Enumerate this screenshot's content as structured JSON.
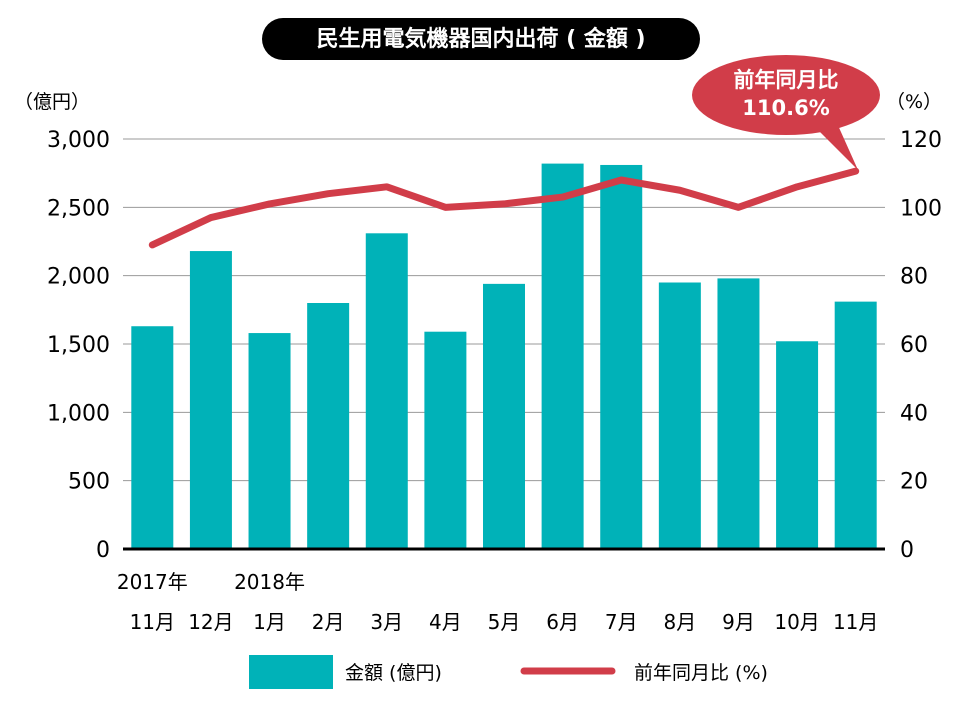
{
  "chart_data": {
    "type": "bar",
    "title": "民生用電気機器国内出荷 ( 金額 )",
    "left_axis_unit": "（億円）",
    "right_axis_unit": "（%）",
    "left_ticks": [
      "3,000",
      "2,500",
      "2,000",
      "1,500",
      "1,000",
      "500",
      "0"
    ],
    "right_ticks": [
      "120",
      "100",
      "80",
      "60",
      "40",
      "20",
      "0"
    ],
    "ylim_left": [
      0,
      3000
    ],
    "ylim_right": [
      0,
      120
    ],
    "year_labels": [
      {
        "text": "2017年",
        "index": 0
      },
      {
        "text": "2018年",
        "index": 2
      }
    ],
    "categories": [
      "11月",
      "12月",
      "1月",
      "2月",
      "3月",
      "4月",
      "5月",
      "6月",
      "7月",
      "8月",
      "9月",
      "10月",
      "11月"
    ],
    "series": [
      {
        "name": "金額 (億円)",
        "type": "bar",
        "axis": "left",
        "color": "#00b2b8",
        "values": [
          1630,
          2180,
          1580,
          1800,
          2310,
          1590,
          1940,
          2820,
          2810,
          1950,
          1980,
          1520,
          1810
        ]
      },
      {
        "name": "前年同月比 (%)",
        "type": "line",
        "axis": "right",
        "color": "#d13d49",
        "values": [
          89,
          97,
          101,
          104,
          106,
          100,
          101,
          103,
          108,
          105,
          100,
          106,
          110.6
        ]
      }
    ],
    "callout": {
      "line1": "前年同月比",
      "line2": "110.6%",
      "color": "#d13d49"
    },
    "legend_position": "bottom"
  }
}
